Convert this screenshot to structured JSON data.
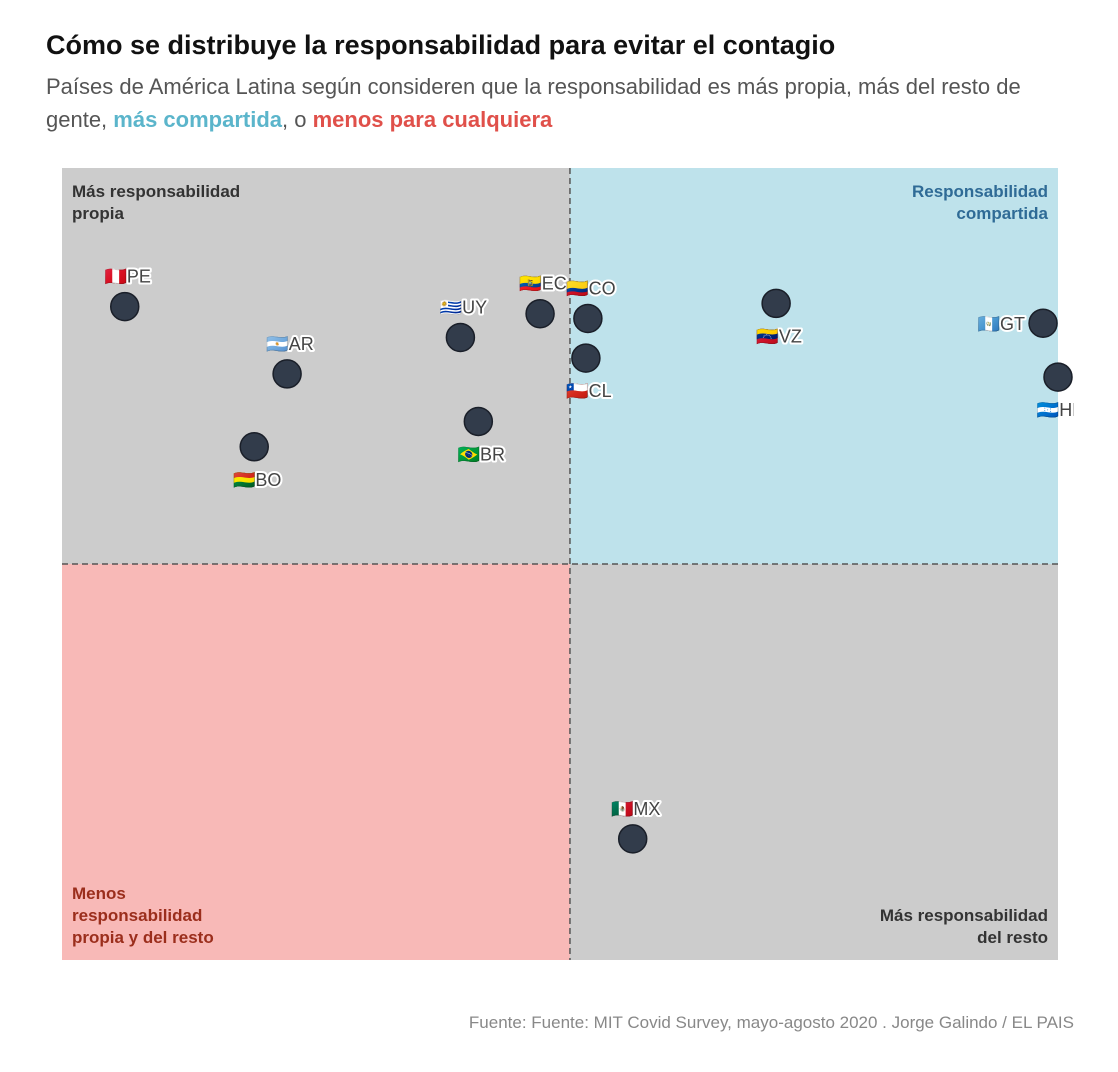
{
  "header": {
    "title": "Cómo se distribuye la responsabilidad para evitar el contagio",
    "subtitle_part1": "Países de América Latina según consideren que la responsabilidad es más propia, más del resto de gente, ",
    "subtitle_highlight_blue": "más compartida",
    "subtitle_part2": ", o ",
    "subtitle_highlight_red": "menos para cualquiera"
  },
  "footer": {
    "source": "Fuente: Fuente: MIT Covid Survey, mayo-agosto 2020 . Jorge Galindo / EL PAIS"
  },
  "colors": {
    "quadrant_grey": "#cccccc",
    "quadrant_blue": "#bee2eb",
    "quadrant_red": "#f8b9b7",
    "dot_fill": "#323c4b",
    "quadrant_label_dark": "#333333",
    "quadrant_label_blue": "#2f6b96",
    "quadrant_label_red": "#9b2e1c"
  },
  "chart_data": {
    "type": "scatter",
    "title": "Cómo se distribuye la responsabilidad para evitar el contagio",
    "xlabel": "",
    "ylabel": "",
    "xlim": [
      0,
      100
    ],
    "ylim": [
      0,
      100
    ],
    "divider": {
      "x": 51,
      "y": 50
    },
    "grid": false,
    "quadrants": [
      {
        "position": "top-left",
        "label_lines": [
          "Más responsabilidad",
          "propia"
        ],
        "color": "#cccccc"
      },
      {
        "position": "top-right",
        "label_lines": [
          "Responsabilidad",
          "compartida"
        ],
        "color": "#bee2eb"
      },
      {
        "position": "bottom-left",
        "label_lines": [
          "Menos",
          "responsabilidad",
          "propia y del resto"
        ],
        "color": "#f8b9b7"
      },
      {
        "position": "bottom-right",
        "label_lines": [
          "Más responsabilidad",
          "del resto"
        ],
        "color": "#cccccc"
      }
    ],
    "points": [
      {
        "code": "PE",
        "flag": "🇵🇪",
        "x": 6.3,
        "y": 82.5,
        "label_pos": "above"
      },
      {
        "code": "AR",
        "flag": "🇦🇷",
        "x": 22.6,
        "y": 74.0,
        "label_pos": "above"
      },
      {
        "code": "BO",
        "flag": "🇧🇴",
        "x": 19.3,
        "y": 64.8,
        "label_pos": "below"
      },
      {
        "code": "UY",
        "flag": "🇺🇾",
        "x": 40.0,
        "y": 78.6,
        "label_pos": "above"
      },
      {
        "code": "BR",
        "flag": "🇧🇷",
        "x": 41.8,
        "y": 68.0,
        "label_pos": "below"
      },
      {
        "code": "EC",
        "flag": "🇪🇨",
        "x": 48.0,
        "y": 81.6,
        "label_pos": "above"
      },
      {
        "code": "CO",
        "flag": "🇨🇴",
        "x": 52.8,
        "y": 81.0,
        "label_pos": "above"
      },
      {
        "code": "CL",
        "flag": "🇨🇱",
        "x": 52.6,
        "y": 76.0,
        "label_pos": "below"
      },
      {
        "code": "VZ",
        "flag": "🇻🇪",
        "x": 71.7,
        "y": 82.9,
        "label_pos": "below"
      },
      {
        "code": "GT",
        "flag": "🇬🇹",
        "x": 98.5,
        "y": 80.4,
        "label_pos": "left"
      },
      {
        "code": "HN",
        "flag": "🇭🇳",
        "x": 100.0,
        "y": 73.6,
        "label_pos": "below"
      },
      {
        "code": "MX",
        "flag": "🇲🇽",
        "x": 57.3,
        "y": 15.3,
        "label_pos": "above"
      }
    ]
  }
}
